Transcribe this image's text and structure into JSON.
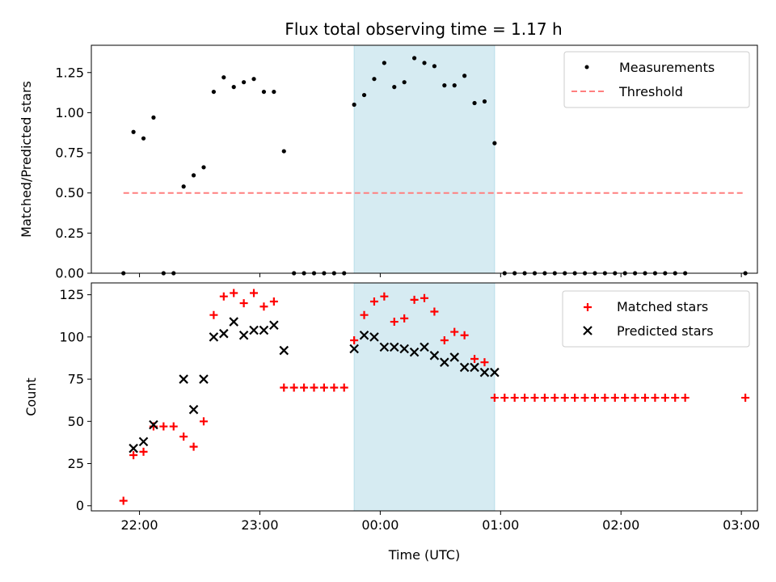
{
  "figure": {
    "title": "Flux total observing time = 1.17 h"
  },
  "chart_data": [
    {
      "type": "scatter",
      "title": "Flux total observing time = 1.17 h",
      "xlabel": "",
      "ylabel": "Matched/Predicted stars",
      "xlim": [
        "21:36",
        "03:08"
      ],
      "ylim": [
        0,
        1.42
      ],
      "yticks": [
        "0.00",
        "0.25",
        "0.50",
        "0.75",
        "1.00",
        "1.25"
      ],
      "xtick_labels_shown": false,
      "legend_position": "top-right",
      "highlight_span": {
        "from": "23:47",
        "to": "00:57",
        "color": "#add8e6"
      },
      "series": [
        {
          "name": "Measurements",
          "marker": "dot",
          "color": "#000000",
          "points": [
            [
              "21:52",
              0
            ],
            [
              "21:57",
              0.88
            ],
            [
              "22:02",
              0.84
            ],
            [
              "22:07",
              0.97
            ],
            [
              "22:12",
              0
            ],
            [
              "22:17",
              0
            ],
            [
              "22:22",
              0.54
            ],
            [
              "22:27",
              0.61
            ],
            [
              "22:32",
              0.66
            ],
            [
              "22:37",
              1.13
            ],
            [
              "22:42",
              1.22
            ],
            [
              "22:47",
              1.16
            ],
            [
              "22:52",
              1.19
            ],
            [
              "22:57",
              1.21
            ],
            [
              "23:02",
              1.13
            ],
            [
              "23:07",
              1.13
            ],
            [
              "23:12",
              0.76
            ],
            [
              "23:17",
              0
            ],
            [
              "23:22",
              0
            ],
            [
              "23:27",
              0
            ],
            [
              "23:32",
              0
            ],
            [
              "23:37",
              0
            ],
            [
              "23:42",
              0
            ],
            [
              "23:47",
              1.05
            ],
            [
              "23:52",
              1.11
            ],
            [
              "23:57",
              1.21
            ],
            [
              "00:02",
              1.31
            ],
            [
              "00:07",
              1.16
            ],
            [
              "00:12",
              1.19
            ],
            [
              "00:17",
              1.34
            ],
            [
              "00:22",
              1.31
            ],
            [
              "00:27",
              1.29
            ],
            [
              "00:32",
              1.17
            ],
            [
              "00:37",
              1.17
            ],
            [
              "00:42",
              1.23
            ],
            [
              "00:47",
              1.06
            ],
            [
              "00:52",
              1.07
            ],
            [
              "00:57",
              0.81
            ],
            [
              "01:02",
              0
            ],
            [
              "01:07",
              0
            ],
            [
              "01:12",
              0
            ],
            [
              "01:17",
              0
            ],
            [
              "01:22",
              0
            ],
            [
              "01:27",
              0
            ],
            [
              "01:32",
              0
            ],
            [
              "01:37",
              0
            ],
            [
              "01:42",
              0
            ],
            [
              "01:47",
              0
            ],
            [
              "01:52",
              0
            ],
            [
              "01:57",
              0
            ],
            [
              "02:02",
              0
            ],
            [
              "02:07",
              0
            ],
            [
              "02:12",
              0
            ],
            [
              "02:17",
              0
            ],
            [
              "02:22",
              0
            ],
            [
              "02:27",
              0
            ],
            [
              "02:32",
              0
            ],
            [
              "03:02",
              0
            ]
          ]
        },
        {
          "name": "Threshold",
          "marker": "dashed-line",
          "color": "#ff7f7f",
          "points": [
            [
              "21:52",
              0.5
            ],
            [
              "03:02",
              0.5
            ]
          ]
        }
      ]
    },
    {
      "type": "scatter",
      "title": "",
      "xlabel": "Time (UTC)",
      "ylabel": "Count",
      "xlim": [
        "21:36",
        "03:08"
      ],
      "ylim": [
        -3,
        132
      ],
      "yticks": [
        "0",
        "25",
        "50",
        "75",
        "100",
        "125"
      ],
      "xticks": [
        "22:00",
        "23:00",
        "00:00",
        "01:00",
        "02:00",
        "03:00"
      ],
      "legend_position": "top-right",
      "highlight_span": {
        "from": "23:47",
        "to": "00:57",
        "color": "#add8e6"
      },
      "series": [
        {
          "name": "Matched stars",
          "marker": "plus",
          "color": "#ff0000",
          "points": [
            [
              "21:52",
              3
            ],
            [
              "21:57",
              30
            ],
            [
              "22:02",
              32
            ],
            [
              "22:07",
              47
            ],
            [
              "22:12",
              47
            ],
            [
              "22:17",
              47
            ],
            [
              "22:22",
              41
            ],
            [
              "22:27",
              35
            ],
            [
              "22:32",
              50
            ],
            [
              "22:37",
              113
            ],
            [
              "22:42",
              124
            ],
            [
              "22:47",
              126
            ],
            [
              "22:52",
              120
            ],
            [
              "22:57",
              126
            ],
            [
              "23:02",
              118
            ],
            [
              "23:07",
              121
            ],
            [
              "23:12",
              70
            ],
            [
              "23:17",
              70
            ],
            [
              "23:22",
              70
            ],
            [
              "23:27",
              70
            ],
            [
              "23:32",
              70
            ],
            [
              "23:37",
              70
            ],
            [
              "23:42",
              70
            ],
            [
              "23:47",
              98
            ],
            [
              "23:52",
              113
            ],
            [
              "23:57",
              121
            ],
            [
              "00:02",
              124
            ],
            [
              "00:07",
              109
            ],
            [
              "00:12",
              111
            ],
            [
              "00:17",
              122
            ],
            [
              "00:22",
              123
            ],
            [
              "00:27",
              115
            ],
            [
              "00:32",
              98
            ],
            [
              "00:37",
              103
            ],
            [
              "00:42",
              101
            ],
            [
              "00:47",
              87
            ],
            [
              "00:52",
              85
            ],
            [
              "00:57",
              64
            ],
            [
              "01:02",
              64
            ],
            [
              "01:07",
              64
            ],
            [
              "01:12",
              64
            ],
            [
              "01:17",
              64
            ],
            [
              "01:22",
              64
            ],
            [
              "01:27",
              64
            ],
            [
              "01:32",
              64
            ],
            [
              "01:37",
              64
            ],
            [
              "01:42",
              64
            ],
            [
              "01:47",
              64
            ],
            [
              "01:52",
              64
            ],
            [
              "01:57",
              64
            ],
            [
              "02:02",
              64
            ],
            [
              "02:07",
              64
            ],
            [
              "02:12",
              64
            ],
            [
              "02:17",
              64
            ],
            [
              "02:22",
              64
            ],
            [
              "02:27",
              64
            ],
            [
              "02:32",
              64
            ],
            [
              "03:02",
              64
            ]
          ]
        },
        {
          "name": "Predicted stars",
          "marker": "x",
          "color": "#000000",
          "points": [
            [
              "21:57",
              34
            ],
            [
              "22:02",
              38
            ],
            [
              "22:07",
              48
            ],
            [
              "22:22",
              75
            ],
            [
              "22:27",
              57
            ],
            [
              "22:32",
              75
            ],
            [
              "22:37",
              100
            ],
            [
              "22:42",
              102
            ],
            [
              "22:47",
              109
            ],
            [
              "22:52",
              101
            ],
            [
              "22:57",
              104
            ],
            [
              "23:02",
              104
            ],
            [
              "23:07",
              107
            ],
            [
              "23:12",
              92
            ],
            [
              "23:47",
              93
            ],
            [
              "23:52",
              101
            ],
            [
              "23:57",
              100
            ],
            [
              "00:02",
              94
            ],
            [
              "00:07",
              94
            ],
            [
              "00:12",
              93
            ],
            [
              "00:17",
              91
            ],
            [
              "00:22",
              94
            ],
            [
              "00:27",
              89
            ],
            [
              "00:32",
              85
            ],
            [
              "00:37",
              88
            ],
            [
              "00:42",
              82
            ],
            [
              "00:47",
              82
            ],
            [
              "00:52",
              79
            ],
            [
              "00:57",
              79
            ]
          ]
        }
      ]
    }
  ]
}
